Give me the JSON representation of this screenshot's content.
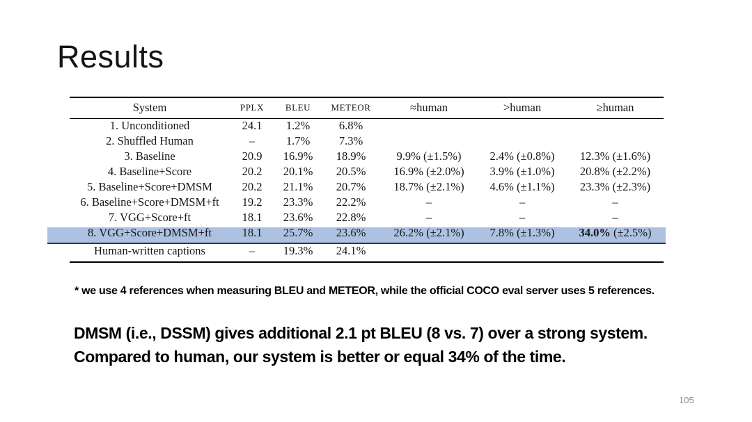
{
  "slide": {
    "title": "Results",
    "page_number": "105",
    "footnote": "* we use 4 references when measuring BLEU and METEOR, while the official COCO eval server uses 5 references.",
    "summary_line1": "DMSM (i.e., DSSM) gives additional 2.1 pt BLEU (8 vs. 7) over a strong system.",
    "summary_line2": "Compared to human, our system is better or equal 34% of the time."
  },
  "table": {
    "highlight_color": "#adc2e2",
    "rule_color": "#1f3c64",
    "headers": [
      "System",
      "PPLX",
      "BLEU",
      "METEOR",
      "≈human",
      ">human",
      "≥human"
    ],
    "rows": [
      {
        "cells": [
          "1. Unconditioned",
          "24.1",
          "1.2%",
          "6.8%",
          "",
          "",
          ""
        ]
      },
      {
        "cells": [
          "2. Shuffled Human",
          "–",
          "1.7%",
          "7.3%",
          "",
          "",
          ""
        ]
      },
      {
        "cells": [
          "3. Baseline",
          "20.9",
          "16.9%",
          "18.9%",
          "9.9% (±1.5%)",
          "2.4% (±0.8%)",
          "12.3% (±1.6%)"
        ]
      },
      {
        "cells": [
          "4. Baseline+Score",
          "20.2",
          "20.1%",
          "20.5%",
          "16.9% (±2.0%)",
          "3.9% (±1.0%)",
          "20.8% (±2.2%)"
        ]
      },
      {
        "cells": [
          "5. Baseline+Score+DMSM",
          "20.2",
          "21.1%",
          "20.7%",
          "18.7% (±2.1%)",
          "4.6% (±1.1%)",
          "23.3% (±2.3%)"
        ]
      },
      {
        "cells": [
          "6. Baseline+Score+DMSM+ft",
          "19.2",
          "23.3%",
          "22.2%",
          "–",
          "–",
          "–"
        ]
      },
      {
        "cells": [
          "7. VGG+Score+ft",
          "18.1",
          "23.6%",
          "22.8%",
          "–",
          "–",
          "–"
        ]
      },
      {
        "cells": [
          "8. VGG+Score+DMSM+ft",
          "18.1",
          "25.7%",
          "23.6%",
          "26.2% (±2.1%)",
          "7.8% (±1.3%)",
          "34.0% (±2.5%)"
        ],
        "highlight": true,
        "bold_cell": 6,
        "bold_text": "34.0%"
      },
      {
        "cells": [
          "Human-written captions",
          "–",
          "19.3%",
          "24.1%",
          "",
          "",
          ""
        ],
        "human": true
      }
    ]
  }
}
